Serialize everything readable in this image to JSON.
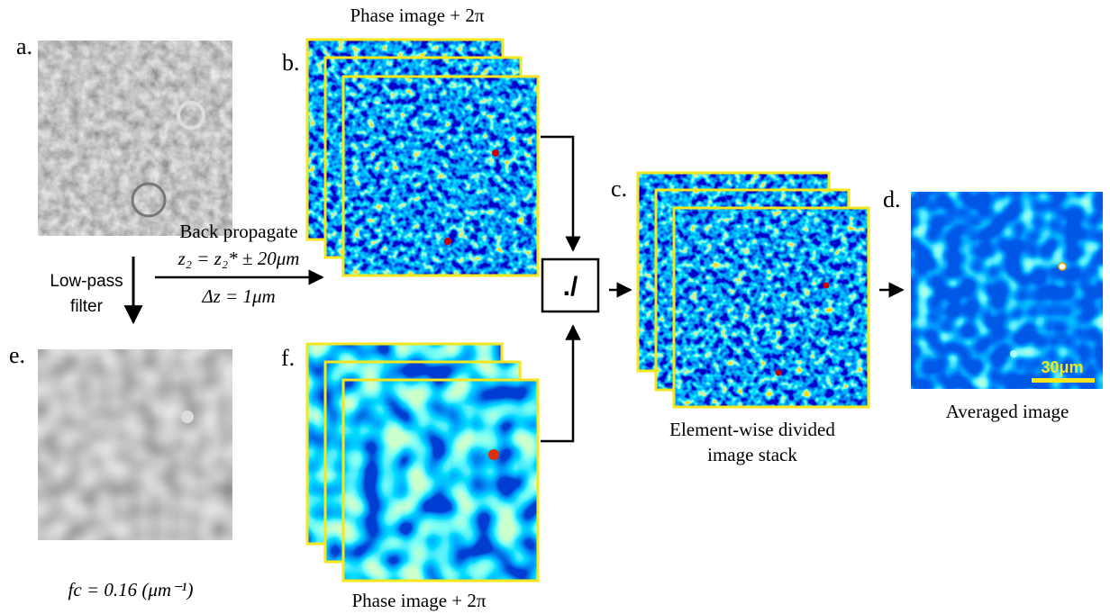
{
  "labels": {
    "a": "a.",
    "b": "b.",
    "c": "c.",
    "d": "d.",
    "e": "e.",
    "f": "f."
  },
  "captions": {
    "b": "Phase image + 2π",
    "f": "Phase image + 2π",
    "e": "fc = 0.16 (μm⁻¹)",
    "c_line1": "Element-wise divided",
    "c_line2": "image stack",
    "d": "Averaged image"
  },
  "arrows": {
    "lowpass_line1": "Low-pass",
    "lowpass_line2": "filter",
    "backprop_line1": "Back propagate",
    "backprop_line2": "z₂ = z₂* ± 20μm",
    "backprop_line3": "Δz = 1μm"
  },
  "operator": "./",
  "scalebar": "30μm"
}
